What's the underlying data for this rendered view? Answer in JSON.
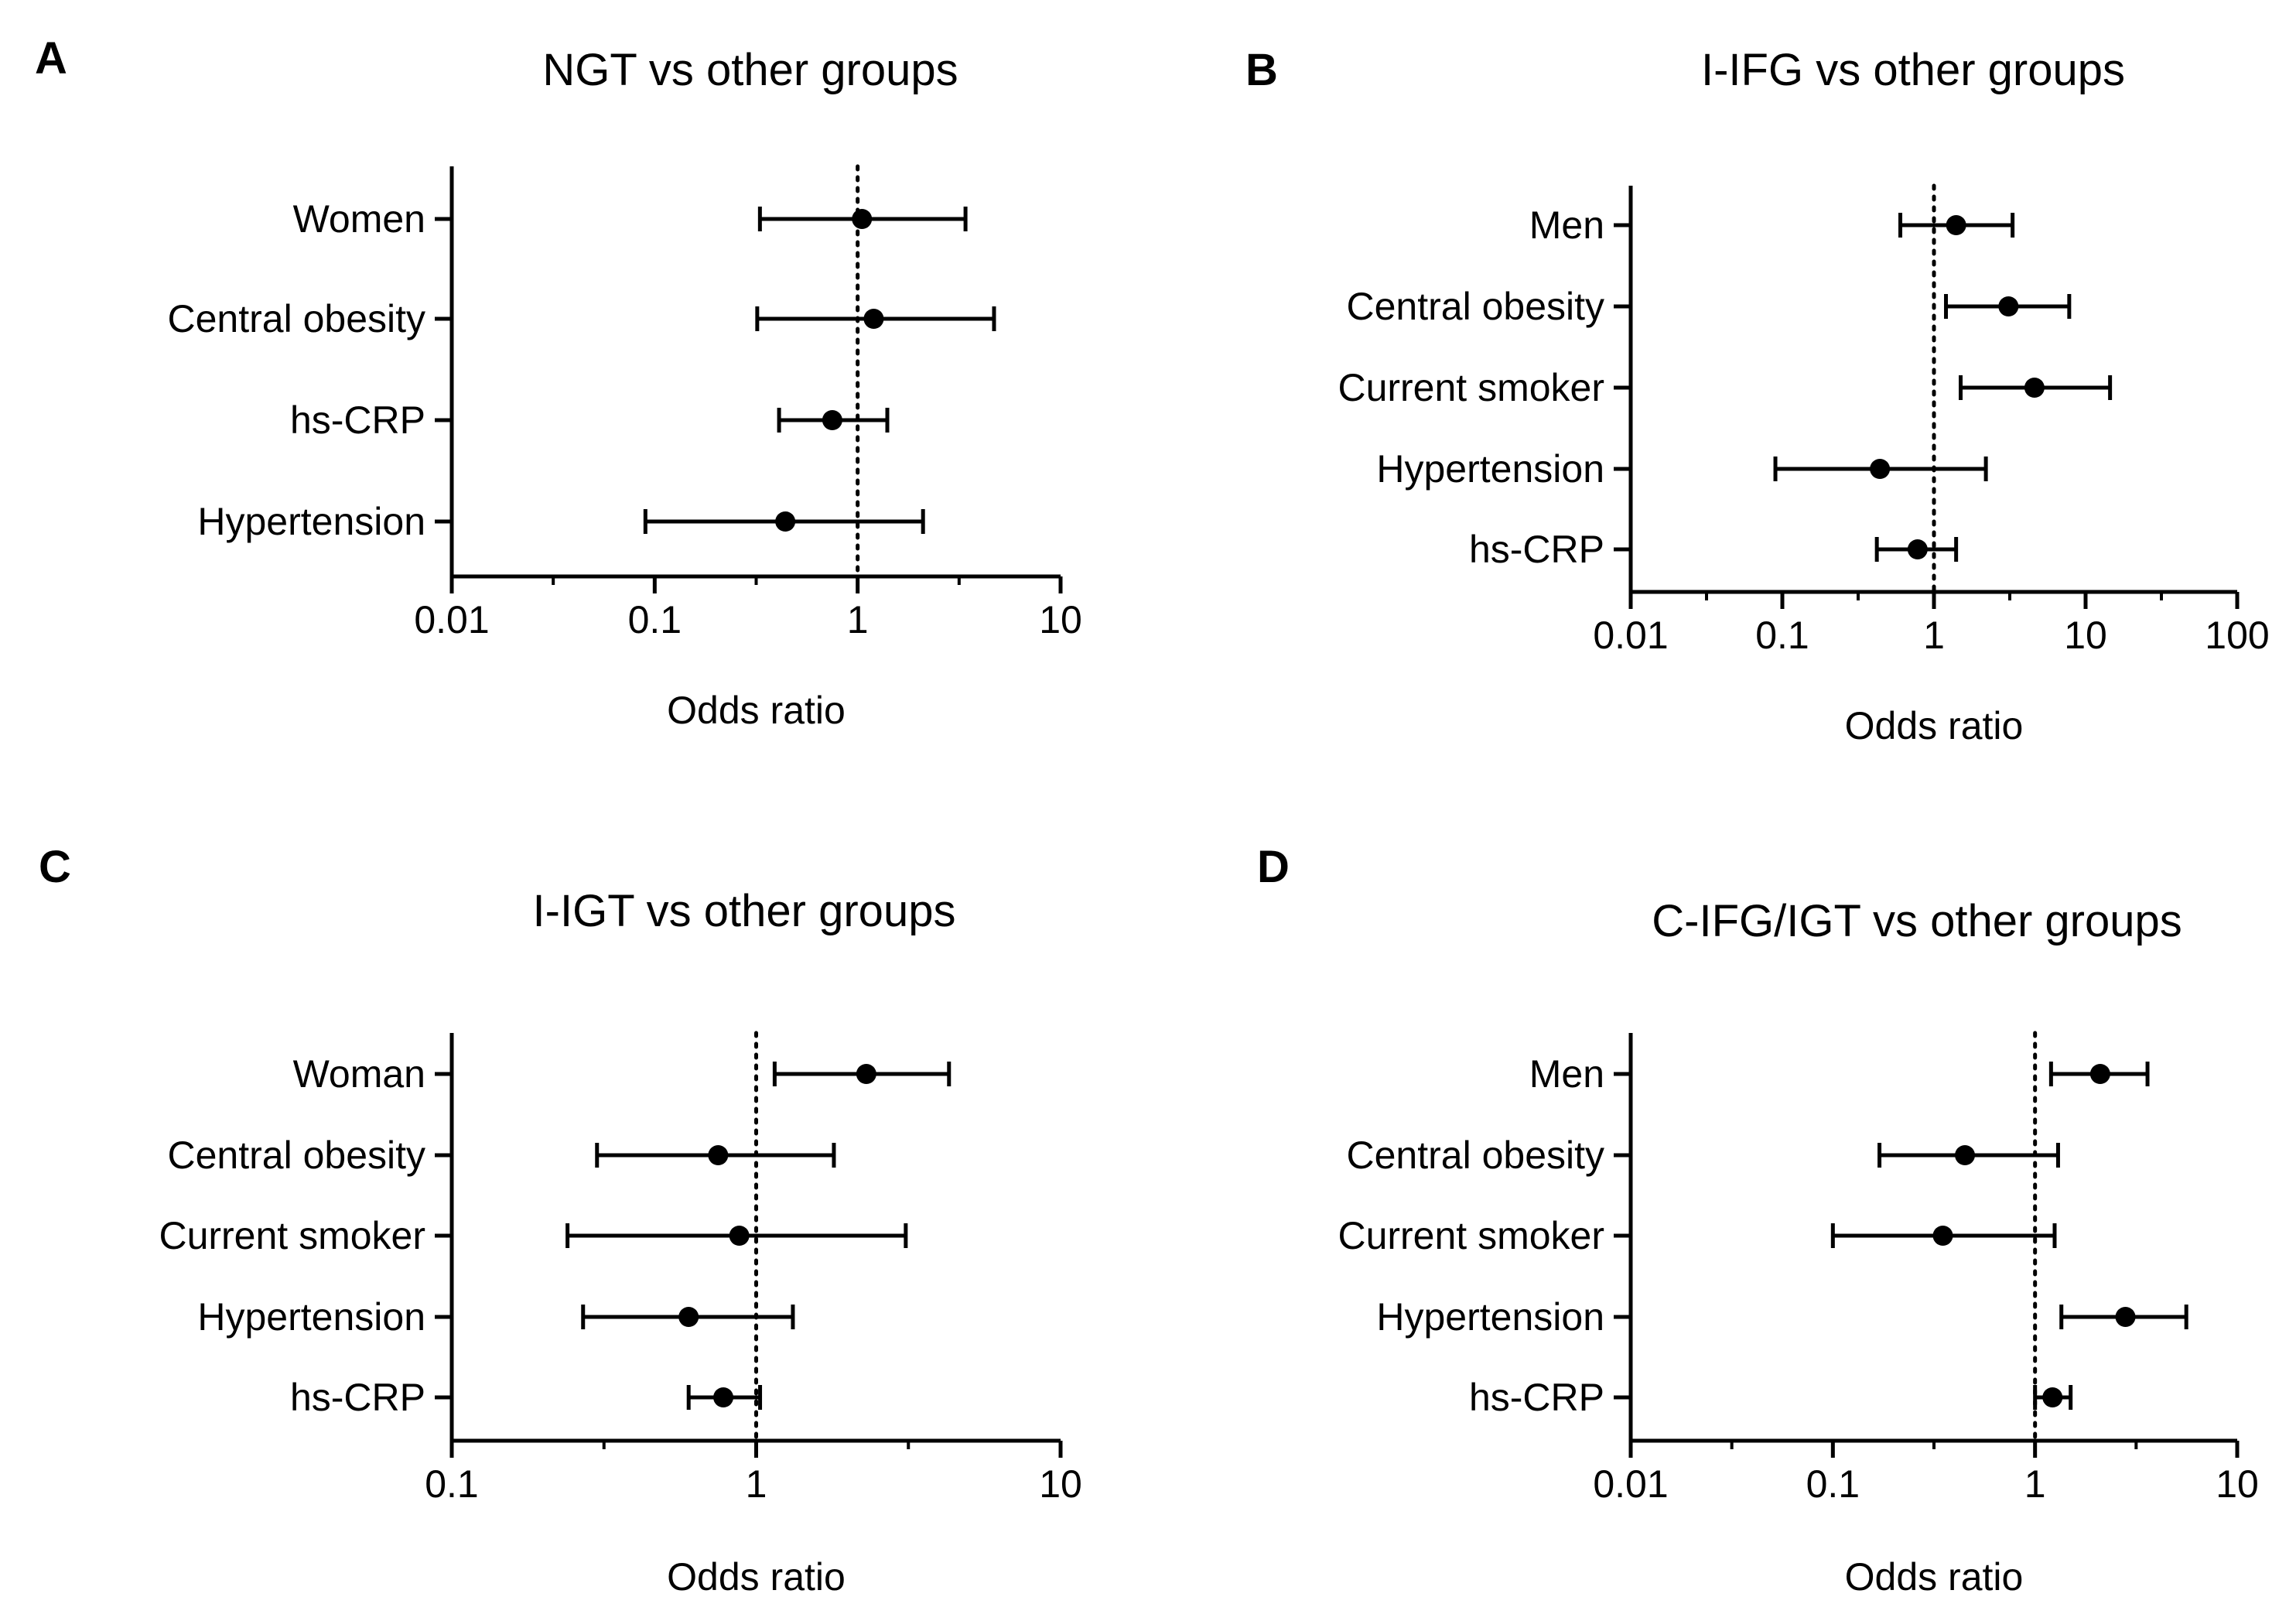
{
  "chart_data": [
    {
      "panel": "A",
      "type": "scatter",
      "title": "NGT vs other groups",
      "xlabel": "Odds ratio",
      "xscale": "log",
      "xlim": [
        0.01,
        10
      ],
      "xticks": [
        "0.01",
        "0.1",
        "1",
        "10"
      ],
      "reference_line": 1,
      "categories": [
        "Women",
        "Central obesity",
        "hs-CRP",
        "Hypertension"
      ],
      "points": [
        {
          "label": "Women",
          "or": 1.05,
          "lower": 0.33,
          "upper": 3.4
        },
        {
          "label": "Central obesity",
          "or": 1.2,
          "lower": 0.32,
          "upper": 4.7
        },
        {
          "label": "hs-CRP",
          "or": 0.75,
          "lower": 0.41,
          "upper": 1.4
        },
        {
          "label": "Hypertension",
          "or": 0.44,
          "lower": 0.09,
          "upper": 2.1
        }
      ]
    },
    {
      "panel": "B",
      "type": "scatter",
      "title": "I-IFG vs other groups",
      "xlabel": "Odds ratio",
      "xscale": "log",
      "xlim": [
        0.01,
        100
      ],
      "xticks": [
        "0.01",
        "0.1",
        "1",
        "10",
        "100"
      ],
      "reference_line": 1,
      "categories": [
        "Men",
        "Central obesity",
        "Current smoker",
        "Hypertension",
        "hs-CRP"
      ],
      "points": [
        {
          "label": "Men",
          "or": 1.4,
          "lower": 0.6,
          "upper": 3.3
        },
        {
          "label": "Central obesity",
          "or": 3.1,
          "lower": 1.2,
          "upper": 7.8
        },
        {
          "label": "Current smoker",
          "or": 4.6,
          "lower": 1.5,
          "upper": 14.5
        },
        {
          "label": "Hypertension",
          "or": 0.44,
          "lower": 0.09,
          "upper": 2.2
        },
        {
          "label": "hs-CRP",
          "or": 0.78,
          "lower": 0.42,
          "upper": 1.4
        }
      ]
    },
    {
      "panel": "C",
      "type": "scatter",
      "title": "I-IGT vs other groups",
      "xlabel": "Odds ratio",
      "xscale": "log",
      "xlim": [
        0.1,
        10
      ],
      "xticks": [
        "0.1",
        "1",
        "10"
      ],
      "reference_line": 1,
      "categories": [
        "Woman",
        "Central obesity",
        "Current smoker",
        "Hypertension",
        "hs-CRP"
      ],
      "points": [
        {
          "label": "Woman",
          "or": 2.3,
          "lower": 1.15,
          "upper": 4.3
        },
        {
          "label": "Central obesity",
          "or": 0.75,
          "lower": 0.3,
          "upper": 1.8
        },
        {
          "label": "Current smoker",
          "or": 0.88,
          "lower": 0.24,
          "upper": 3.1
        },
        {
          "label": "Hypertension",
          "or": 0.6,
          "lower": 0.27,
          "upper": 1.32
        },
        {
          "label": "hs-CRP",
          "or": 0.78,
          "lower": 0.6,
          "upper": 1.03
        }
      ]
    },
    {
      "panel": "D",
      "type": "scatter",
      "title": "C-IFG/IGT vs other groups",
      "xlabel": "Odds ratio",
      "xscale": "log",
      "xlim": [
        0.01,
        10
      ],
      "xticks": [
        "0.01",
        "0.1",
        "1",
        "10"
      ],
      "reference_line": 1,
      "categories": [
        "Men",
        "Central obesity",
        "Current smoker",
        "Hypertension",
        "hs-CRP"
      ],
      "points": [
        {
          "label": "Men",
          "or": 2.1,
          "lower": 1.2,
          "upper": 3.6
        },
        {
          "label": "Central obesity",
          "or": 0.45,
          "lower": 0.17,
          "upper": 1.3
        },
        {
          "label": "Current smoker",
          "or": 0.35,
          "lower": 0.1,
          "upper": 1.25
        },
        {
          "label": "Hypertension",
          "or": 2.8,
          "lower": 1.35,
          "upper": 5.6
        },
        {
          "label": "hs-CRP",
          "or": 1.22,
          "lower": 1.0,
          "upper": 1.5
        }
      ]
    }
  ]
}
